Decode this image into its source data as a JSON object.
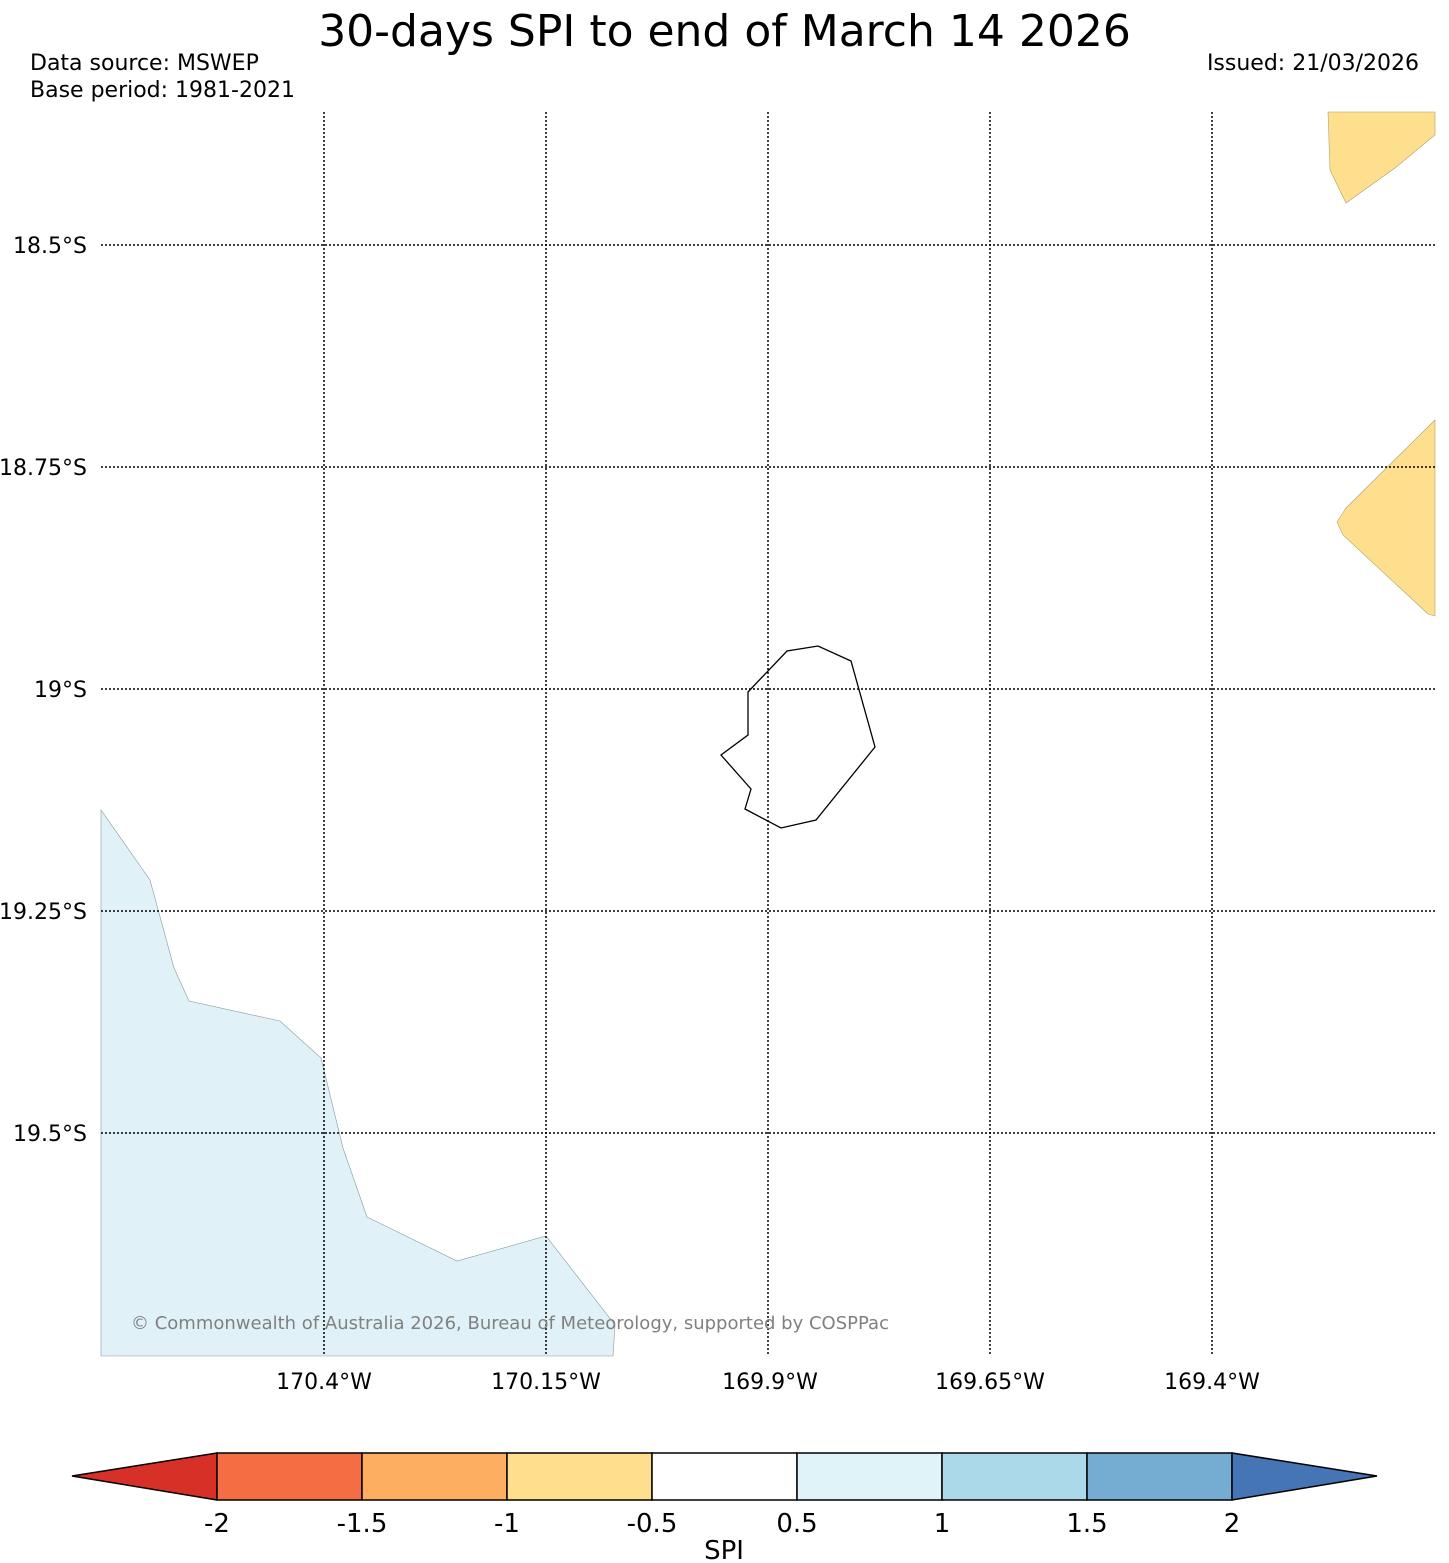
{
  "header": {
    "title": "30-days SPI to end of March 14 2026",
    "data_source": "Data source: MSWEP",
    "base_period": "Base period: 1981-2021",
    "issued": "Issued: 21/03/2026"
  },
  "map": {
    "lat_labels": [
      "18.5°S",
      "18.75°S",
      "19°S",
      "19.25°S",
      "19.5°S"
    ],
    "lon_labels": [
      "170.4°W",
      "170.15°W",
      "169.9°W",
      "169.65°W",
      "169.4°W"
    ],
    "copyright": "© Commonwealth of Australia 2026, Bureau of Meteorology, supported by COSPPac",
    "regions": [
      {
        "name": "spi-region-northeast",
        "spi_class": "-1 to -0.5",
        "color": "#fedf8e"
      },
      {
        "name": "spi-region-east",
        "spi_class": "-1 to -0.5",
        "color": "#fedf8e"
      },
      {
        "name": "spi-region-southwest",
        "spi_class": "0.5 to 1",
        "color": "#e0f2f8"
      }
    ],
    "island": "island-outline"
  },
  "colorbar": {
    "label": "SPI",
    "ticks": [
      "-2",
      "-1.5",
      "-1",
      "-0.5",
      "0.5",
      "1",
      "1.5",
      "2"
    ],
    "colors": [
      "#d73027",
      "#f46d43",
      "#fdae61",
      "#fedf8e",
      "#ffffff",
      "#e0f3f8",
      "#abd9e9",
      "#74add1",
      "#4575b4"
    ]
  }
}
